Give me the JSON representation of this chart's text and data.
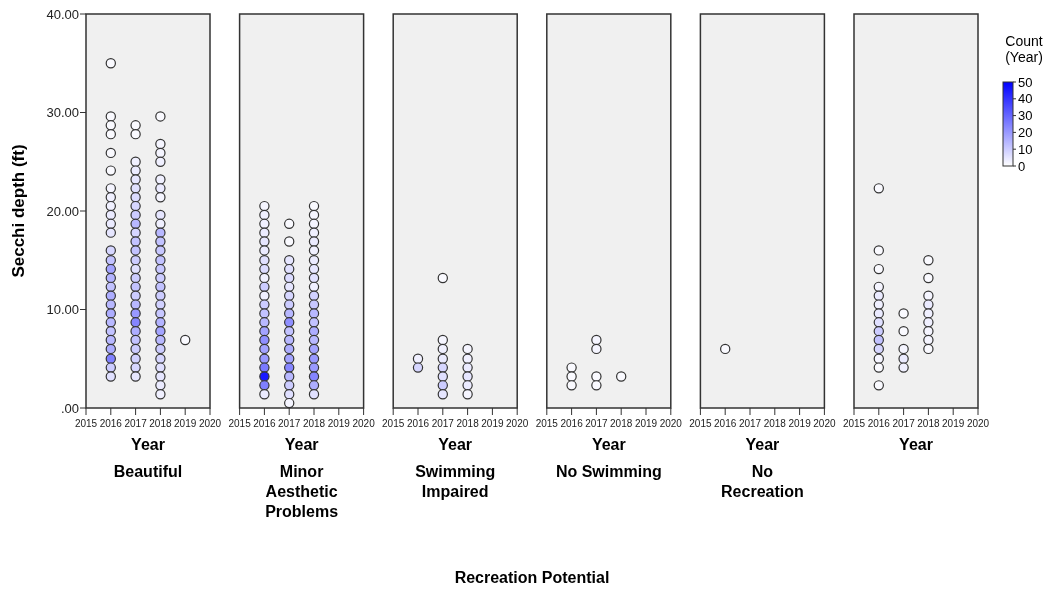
{
  "chart_data": [
    {
      "type": "scatter",
      "title": "Beautiful",
      "xlabel": "Year",
      "ylabel": "Secchi depth (ft)",
      "annotations": [
        "Recreation Potential"
      ],
      "xlim": [
        2015,
        2020
      ],
      "xticks": [
        2015,
        2016,
        2017,
        2018,
        2019,
        2020
      ],
      "ylim": [
        0,
        40
      ],
      "yticks": [
        {
          "value": 0,
          "label": ".00"
        },
        {
          "value": 10,
          "label": "10.00"
        },
        {
          "value": 20,
          "label": "20.00"
        },
        {
          "value": 30,
          "label": "30.00"
        },
        {
          "value": 40,
          "label": "40.00"
        }
      ],
      "marker": "circle",
      "series": [
        {
          "x": [
            2016,
            2016,
            2016,
            2016,
            2016,
            2016,
            2016,
            2016,
            2016,
            2016,
            2016,
            2016,
            2016,
            2016,
            2016,
            2016,
            2016,
            2016,
            2016,
            2016,
            2016,
            2016,
            2016,
            2016,
            2016,
            2016,
            2016
          ],
          "values": [
            35,
            29.6,
            28.7,
            27.8,
            25.9,
            24.1,
            22.3,
            21.4,
            20.5,
            19.6,
            18.7,
            17.8,
            16.0,
            15.0,
            14.1,
            13.2,
            12.3,
            11.4,
            10.5,
            9.6,
            8.7,
            7.8,
            6.9,
            6.0,
            5.0,
            4.1,
            3.2
          ],
          "colors": [
            "#fafaff",
            "#fafaff",
            "#fafaff",
            "#fafaff",
            "#fafaff",
            "#fafaff",
            "#f5f5ff",
            "#f0f0ff",
            "#f0f0ff",
            "#ebebff",
            "#ebebff",
            "#e6e6ff",
            "#d6d6ff",
            "#c2c2ff",
            "#a3a3ff",
            "#b3b3ff",
            "#c2c2ff",
            "#adadff",
            "#b8b8ff",
            "#adadff",
            "#b8b8ff",
            "#c2c2ff",
            "#b8b8ff",
            "#adadff",
            "#8080ff",
            "#ccccff",
            "#e0e0ff"
          ]
        },
        {
          "x": [
            2017,
            2017,
            2017,
            2017,
            2017,
            2017,
            2017,
            2017,
            2017,
            2017,
            2017,
            2017,
            2017,
            2017,
            2017,
            2017,
            2017,
            2017,
            2017,
            2017,
            2017,
            2017,
            2017,
            2017,
            2017,
            2017,
            2017
          ],
          "values": [
            28.7,
            27.8,
            25.0,
            24.1,
            23.2,
            22.3,
            21.4,
            20.5,
            19.6,
            18.7,
            17.8,
            16.9,
            16.0,
            15.0,
            14.1,
            13.2,
            12.3,
            11.4,
            10.5,
            9.6,
            8.7,
            7.8,
            6.9,
            6.0,
            5.0,
            4.1,
            3.2
          ],
          "colors": [
            "#fafaff",
            "#fafaff",
            "#f0f0ff",
            "#ebebff",
            "#e6e6ff",
            "#e0e0ff",
            "#dbdbff",
            "#d6d6ff",
            "#ccccff",
            "#b8b8ff",
            "#d6d6ff",
            "#c2c2ff",
            "#c2c2ff",
            "#ccccff",
            "#e0e0ff",
            "#ccccff",
            "#c2c2ff",
            "#ccccff",
            "#b8b8ff",
            "#9999ff",
            "#8585ff",
            "#adadff",
            "#c2c2ff",
            "#ccccff",
            "#d1d1ff",
            "#d6d6ff",
            "#e6e6ff"
          ]
        },
        {
          "x": [
            2018,
            2018,
            2018,
            2018,
            2018,
            2018,
            2018,
            2018,
            2018,
            2018,
            2018,
            2018,
            2018,
            2018,
            2018,
            2018,
            2018,
            2018,
            2018,
            2018,
            2018,
            2018,
            2018,
            2018,
            2018,
            2018,
            2018,
            2018
          ],
          "values": [
            29.6,
            26.8,
            25.9,
            25.0,
            23.2,
            22.3,
            21.4,
            19.6,
            18.7,
            17.8,
            16.9,
            16.0,
            15.0,
            14.1,
            13.2,
            12.3,
            11.4,
            10.5,
            9.6,
            8.7,
            7.8,
            6.9,
            6.0,
            5.0,
            4.1,
            3.2,
            2.3,
            1.4
          ],
          "colors": [
            "#fafaff",
            "#f5f5ff",
            "#f5f5ff",
            "#f0f0ff",
            "#f0f0ff",
            "#ebebff",
            "#f5f5ff",
            "#e6e6ff",
            "#f0f0ff",
            "#b8b8ff",
            "#c2c2ff",
            "#c7c7ff",
            "#c2c2ff",
            "#c7c7ff",
            "#ccccff",
            "#c2c2ff",
            "#ccccff",
            "#d1d1ff",
            "#c7c7ff",
            "#b3b3ff",
            "#a3a3ff",
            "#b8b8ff",
            "#ccccff",
            "#d6d6ff",
            "#e0e0ff",
            "#e6e6ff",
            "#ebebff",
            "#f0f0ff"
          ]
        },
        {
          "x": [
            2019
          ],
          "values": [
            6.9
          ],
          "color": "#fafaff"
        }
      ]
    },
    {
      "type": "scatter",
      "title": "Minor Aesthetic Problems",
      "xlabel": "Year",
      "tick_labels": "x",
      "xlim": [
        2015,
        2020
      ],
      "xticks": [
        2015,
        2016,
        2017,
        2018,
        2019,
        2020
      ],
      "ylim": [
        0,
        40
      ],
      "marker": "circle",
      "series": [
        {
          "x": [
            2016,
            2016,
            2016,
            2016,
            2016,
            2016,
            2016,
            2016,
            2016,
            2016,
            2016,
            2016,
            2016,
            2016,
            2016,
            2016,
            2016,
            2016,
            2016,
            2016,
            2016,
            2016
          ],
          "values": [
            20.5,
            19.6,
            18.7,
            17.8,
            16.9,
            16.0,
            15.0,
            14.1,
            13.2,
            12.3,
            11.4,
            10.5,
            9.6,
            8.7,
            7.8,
            6.9,
            6.0,
            5.0,
            4.1,
            3.2,
            2.3,
            1.4
          ],
          "colors": [
            "#f5f5ff",
            "#f0f0ff",
            "#f0f0ff",
            "#ebebff",
            "#e6e6ff",
            "#ebebff",
            "#e0e0ff",
            "#dbdbff",
            "#f0f0ff",
            "#ccccff",
            "#f0f0ff",
            "#ccccff",
            "#c2c2ff",
            "#b8b8ff",
            "#a3a3ff",
            "#8f8fff",
            "#a3a3ff",
            "#9999ff",
            "#7a7aff",
            "#1a1aff",
            "#8080ff",
            "#ebebff"
          ]
        },
        {
          "x": [
            2017,
            2017,
            2017,
            2017,
            2017,
            2017,
            2017,
            2017,
            2017,
            2017,
            2017,
            2017,
            2017,
            2017,
            2017,
            2017,
            2017,
            2017,
            2017
          ],
          "values": [
            18.7,
            16.9,
            15.0,
            14.1,
            13.2,
            12.3,
            11.4,
            10.5,
            9.6,
            8.7,
            7.8,
            6.9,
            6.0,
            5.0,
            4.1,
            3.2,
            2.3,
            1.4,
            0.5
          ],
          "colors": [
            "#fafaff",
            "#fafaff",
            "#e6e6ff",
            "#e0e0ff",
            "#dbdbff",
            "#e6e6ff",
            "#d6d6ff",
            "#ccccff",
            "#b8b8ff",
            "#8f8fff",
            "#c2c2ff",
            "#b8b8ff",
            "#adadff",
            "#a3a3ff",
            "#8585ff",
            "#b8b8ff",
            "#ccccff",
            "#e0e0ff",
            "#f5f5ff"
          ]
        },
        {
          "x": [
            2018,
            2018,
            2018,
            2018,
            2018,
            2018,
            2018,
            2018,
            2018,
            2018,
            2018,
            2018,
            2018,
            2018,
            2018,
            2018,
            2018,
            2018,
            2018,
            2018,
            2018,
            2018
          ],
          "values": [
            20.5,
            19.6,
            18.7,
            17.8,
            16.9,
            16.0,
            15.0,
            14.1,
            13.2,
            12.3,
            11.4,
            10.5,
            9.6,
            8.7,
            7.8,
            6.9,
            6.0,
            5.0,
            4.1,
            3.2,
            2.3,
            1.4
          ],
          "colors": [
            "#fafaff",
            "#f5f5ff",
            "#f5f5ff",
            "#f0f0ff",
            "#ebebff",
            "#f0f0ff",
            "#ebebff",
            "#e6e6ff",
            "#e0e0ff",
            "#f0f0ff",
            "#d1d1ff",
            "#c7c7ff",
            "#b8b8ff",
            "#c2c2ff",
            "#adadff",
            "#b8b8ff",
            "#a3a3ff",
            "#9999ff",
            "#9999ff",
            "#8585ff",
            "#adadff",
            "#e0e0ff"
          ]
        }
      ]
    },
    {
      "type": "scatter",
      "title": "Swimming Impaired",
      "xlabel": "Year",
      "tick_labels": "x",
      "xlim": [
        2015,
        2020
      ],
      "xticks": [
        2015,
        2016,
        2017,
        2018,
        2019,
        2020
      ],
      "ylim": [
        0,
        40
      ],
      "marker": "circle",
      "series": [
        {
          "x": [
            2016,
            2016
          ],
          "values": [
            5.0,
            4.1
          ],
          "colors": [
            "#f0f0ff",
            "#d6d6ff"
          ]
        },
        {
          "x": [
            2017,
            2017,
            2017,
            2017,
            2017,
            2017,
            2017,
            2017
          ],
          "values": [
            13.2,
            6.9,
            6.0,
            5.0,
            4.1,
            3.2,
            2.3,
            1.4
          ],
          "colors": [
            "#fafaff",
            "#f5f5ff",
            "#f0f0ff",
            "#ebebff",
            "#d6d6ff",
            "#e0e0ff",
            "#ccccff",
            "#e6e6ff"
          ]
        },
        {
          "x": [
            2018,
            2018,
            2018,
            2018,
            2018,
            2018
          ],
          "values": [
            6.0,
            5.0,
            4.1,
            3.2,
            2.3,
            1.4
          ],
          "colors": [
            "#f5f5ff",
            "#f0f0ff",
            "#ebebff",
            "#e6e6ff",
            "#ebebff",
            "#f5f5ff"
          ]
        }
      ]
    },
    {
      "type": "scatter",
      "title": "No Swimming",
      "xlabel": "Year",
      "tick_labels": "x",
      "xlim": [
        2015,
        2020
      ],
      "xticks": [
        2015,
        2016,
        2017,
        2018,
        2019,
        2020
      ],
      "ylim": [
        0,
        40
      ],
      "marker": "circle",
      "series": [
        {
          "x": [
            2016,
            2016,
            2016
          ],
          "values": [
            4.1,
            3.2,
            2.3
          ],
          "color": "#fafaff"
        },
        {
          "x": [
            2017,
            2017,
            2017,
            2017
          ],
          "values": [
            6.9,
            6.0,
            3.2,
            2.3
          ],
          "colors": [
            "#f5f5ff",
            "#f5f5ff",
            "#fafaff",
            "#fafaff"
          ]
        },
        {
          "x": [
            2018
          ],
          "values": [
            3.2
          ],
          "color": "#fafaff"
        }
      ]
    },
    {
      "type": "scatter",
      "title": "No Recreation",
      "xlabel": "Year",
      "tick_labels": "x",
      "xlim": [
        2015,
        2020
      ],
      "xticks": [
        2015,
        2016,
        2017,
        2018,
        2019,
        2020
      ],
      "ylim": [
        0,
        40
      ],
      "marker": "circle",
      "series": [
        {
          "x": [
            2016
          ],
          "values": [
            6.0
          ],
          "color": "#fafaff"
        }
      ]
    },
    {
      "type": "scatter",
      "xlabel": "Year",
      "tick_labels": "x",
      "xlim": [
        2015,
        2020
      ],
      "xticks": [
        2015,
        2016,
        2017,
        2018,
        2019,
        2020
      ],
      "ylim": [
        0,
        40
      ],
      "clim": [
        0,
        50
      ],
      "clabel": "Count (Year)",
      "cticks": [
        50,
        40,
        30,
        20,
        10,
        0
      ],
      "marker": "circle",
      "series": [
        {
          "x": [
            2016,
            2016,
            2016,
            2016,
            2016,
            2016,
            2016,
            2016,
            2016,
            2016,
            2016,
            2016,
            2016,
            2016
          ],
          "values": [
            22.3,
            16.0,
            14.1,
            12.3,
            11.4,
            10.5,
            9.6,
            8.7,
            7.8,
            6.9,
            6.0,
            5.0,
            4.1,
            2.3
          ],
          "colors": [
            "#fafaff",
            "#fafaff",
            "#fafaff",
            "#f5f5ff",
            "#ebebff",
            "#f0f0ff",
            "#ebebff",
            "#e0e0ff",
            "#ccccff",
            "#c2c2ff",
            "#d6d6ff",
            "#f5f5ff",
            "#fafaff",
            "#fafaff"
          ]
        },
        {
          "x": [
            2017,
            2017,
            2017,
            2017,
            2017
          ],
          "values": [
            9.6,
            7.8,
            6.0,
            5.0,
            4.1
          ],
          "colors": [
            "#fafaff",
            "#fafaff",
            "#f5f5ff",
            "#ebebff",
            "#f0f0ff"
          ]
        },
        {
          "x": [
            2018,
            2018,
            2018,
            2018,
            2018,
            2018,
            2018,
            2018,
            2018
          ],
          "values": [
            15.0,
            13.2,
            11.4,
            10.5,
            9.6,
            8.7,
            7.8,
            6.9,
            6.0
          ],
          "colors": [
            "#fafaff",
            "#fafaff",
            "#f5f5ff",
            "#ebebff",
            "#f0f0ff",
            "#f0f0ff",
            "#f5f5ff",
            "#f5f5ff",
            "#fafaff"
          ]
        }
      ]
    }
  ]
}
